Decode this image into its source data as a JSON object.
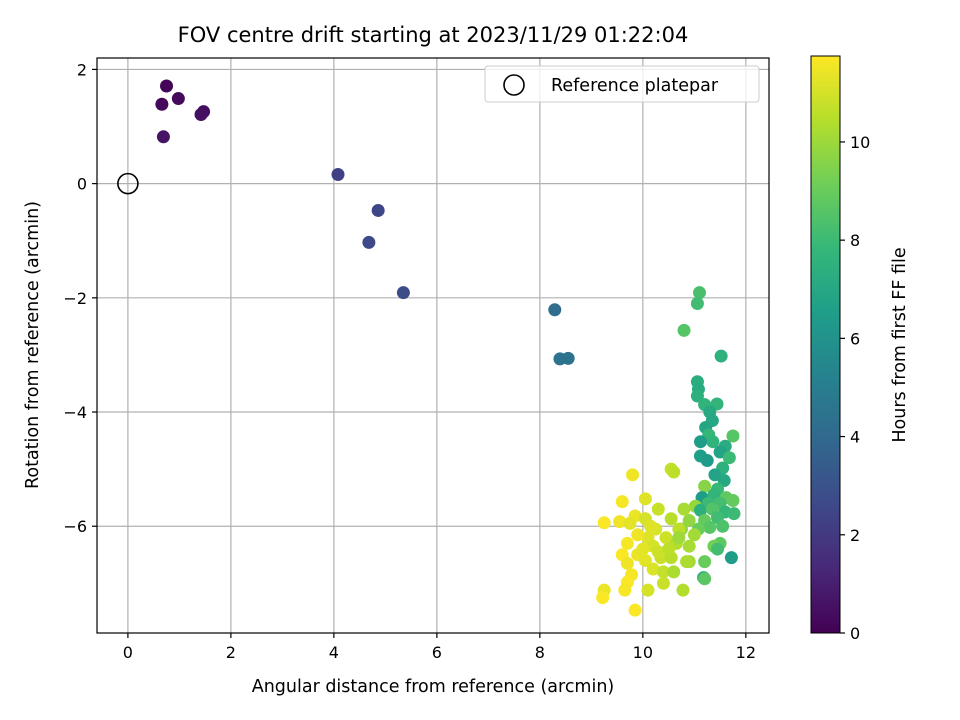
{
  "chart_data": {
    "type": "scatter",
    "title": "FOV centre drift starting at 2023/11/29 01:22:04",
    "xlabel": "Angular distance from reference (arcmin)",
    "ylabel": "Rotation from reference (arcmin)",
    "xlim": [
      -0.6,
      12.45
    ],
    "ylim": [
      -7.87,
      2.2
    ],
    "xticks": [
      0,
      2,
      4,
      6,
      8,
      10,
      12
    ],
    "yticks": [
      -6,
      -4,
      -2,
      0,
      2
    ],
    "xtick_labels": [
      "0",
      "2",
      "4",
      "6",
      "8",
      "10",
      "12"
    ],
    "ytick_labels": [
      "−6",
      "−4",
      "−2",
      "0",
      "2"
    ],
    "grid": true,
    "legend_position": "top-right",
    "legend": [
      "Reference platepar"
    ],
    "reference_point": {
      "x": 0,
      "y": 0
    },
    "colormap": "viridis",
    "colorbar": {
      "label": "Hours from first FF file",
      "range": [
        0,
        11.75
      ],
      "ticks": [
        0,
        2,
        4,
        6,
        8,
        10
      ],
      "tick_labels": [
        "0",
        "2",
        "4",
        "6",
        "8",
        "10"
      ],
      "colors": [
        "#440154",
        "#482878",
        "#3e4989",
        "#31688e",
        "#26828e",
        "#1f9e89",
        "#35b779",
        "#6ece58",
        "#b5de2b",
        "#fde725"
      ]
    },
    "points": [
      {
        "x": 0.75,
        "y": 1.71,
        "h": 0.1
      },
      {
        "x": 0.66,
        "y": 1.39,
        "h": 0.2
      },
      {
        "x": 0.98,
        "y": 1.49,
        "h": 0.3
      },
      {
        "x": 1.47,
        "y": 1.26,
        "h": 0.4
      },
      {
        "x": 1.42,
        "y": 1.21,
        "h": 0.5
      },
      {
        "x": 0.69,
        "y": 0.82,
        "h": 0.6
      },
      {
        "x": 4.08,
        "y": 0.16,
        "h": 2.3
      },
      {
        "x": 4.86,
        "y": -0.47,
        "h": 2.5
      },
      {
        "x": 4.68,
        "y": -1.03,
        "h": 2.6
      },
      {
        "x": 5.35,
        "y": -1.91,
        "h": 2.7
      },
      {
        "x": 8.29,
        "y": -2.21,
        "h": 4.2
      },
      {
        "x": 8.39,
        "y": -3.07,
        "h": 4.4
      },
      {
        "x": 8.55,
        "y": -3.06,
        "h": 4.5
      },
      {
        "x": 11.1,
        "y": -1.91,
        "h": 8.3
      },
      {
        "x": 11.06,
        "y": -2.1,
        "h": 8.1
      },
      {
        "x": 10.8,
        "y": -2.57,
        "h": 8.6
      },
      {
        "x": 11.52,
        "y": -3.02,
        "h": 7.5
      },
      {
        "x": 11.06,
        "y": -3.47,
        "h": 7.3
      },
      {
        "x": 11.08,
        "y": -3.6,
        "h": 7.2
      },
      {
        "x": 11.06,
        "y": -3.72,
        "h": 7.4
      },
      {
        "x": 11.2,
        "y": -3.87,
        "h": 7.6
      },
      {
        "x": 11.44,
        "y": -3.86,
        "h": 7.7
      },
      {
        "x": 11.3,
        "y": -4.0,
        "h": 7.1
      },
      {
        "x": 11.35,
        "y": -4.15,
        "h": 7.0
      },
      {
        "x": 11.22,
        "y": -4.27,
        "h": 6.9
      },
      {
        "x": 11.28,
        "y": -4.4,
        "h": 7.8
      },
      {
        "x": 11.36,
        "y": -4.52,
        "h": 7.6
      },
      {
        "x": 11.12,
        "y": -4.52,
        "h": 6.5
      },
      {
        "x": 11.75,
        "y": -4.42,
        "h": 8.6
      },
      {
        "x": 11.6,
        "y": -4.6,
        "h": 7.2
      },
      {
        "x": 11.5,
        "y": -4.7,
        "h": 6.8
      },
      {
        "x": 11.12,
        "y": -4.77,
        "h": 6.6
      },
      {
        "x": 11.25,
        "y": -4.85,
        "h": 6.4
      },
      {
        "x": 11.68,
        "y": -4.8,
        "h": 8.0
      },
      {
        "x": 11.55,
        "y": -4.98,
        "h": 7.5
      },
      {
        "x": 11.4,
        "y": -5.1,
        "h": 6.8
      },
      {
        "x": 11.58,
        "y": -5.2,
        "h": 7.0
      },
      {
        "x": 11.2,
        "y": -5.3,
        "h": 9.6
      },
      {
        "x": 11.45,
        "y": -5.35,
        "h": 7.9
      },
      {
        "x": 11.15,
        "y": -5.5,
        "h": 6.5
      },
      {
        "x": 11.38,
        "y": -5.45,
        "h": 7.7
      },
      {
        "x": 11.62,
        "y": -5.5,
        "h": 8.8
      },
      {
        "x": 11.75,
        "y": -5.55,
        "h": 8.9
      },
      {
        "x": 11.5,
        "y": -5.6,
        "h": 8.2
      },
      {
        "x": 11.27,
        "y": -5.6,
        "h": 8.0
      },
      {
        "x": 11.02,
        "y": -5.65,
        "h": 9.9
      },
      {
        "x": 11.12,
        "y": -5.72,
        "h": 7.4
      },
      {
        "x": 11.35,
        "y": -5.7,
        "h": 8.5
      },
      {
        "x": 11.6,
        "y": -5.75,
        "h": 7.8
      },
      {
        "x": 11.77,
        "y": -5.78,
        "h": 8.0
      },
      {
        "x": 11.45,
        "y": -5.85,
        "h": 8.1
      },
      {
        "x": 11.2,
        "y": -5.9,
        "h": 8.9
      },
      {
        "x": 10.9,
        "y": -5.9,
        "h": 9.8
      },
      {
        "x": 11.55,
        "y": -6.0,
        "h": 8.4
      },
      {
        "x": 11.3,
        "y": -6.02,
        "h": 8.6
      },
      {
        "x": 11.08,
        "y": -6.05,
        "h": 9.0
      },
      {
        "x": 10.75,
        "y": -6.05,
        "h": 9.7
      },
      {
        "x": 11.5,
        "y": -6.3,
        "h": 8.8
      },
      {
        "x": 11.38,
        "y": -6.35,
        "h": 9.2
      },
      {
        "x": 11.45,
        "y": -6.4,
        "h": 8.2
      },
      {
        "x": 11.72,
        "y": -6.55,
        "h": 6.5
      },
      {
        "x": 11.2,
        "y": -6.62,
        "h": 9.0
      },
      {
        "x": 10.9,
        "y": -6.62,
        "h": 10.0
      },
      {
        "x": 11.18,
        "y": -6.9,
        "h": 7.0
      },
      {
        "x": 11.2,
        "y": -6.92,
        "h": 8.7
      },
      {
        "x": 10.78,
        "y": -7.12,
        "h": 10.4
      },
      {
        "x": 10.55,
        "y": -5.0,
        "h": 10.7
      },
      {
        "x": 10.6,
        "y": -5.05,
        "h": 10.6
      },
      {
        "x": 9.8,
        "y": -5.1,
        "h": 11.5
      },
      {
        "x": 10.05,
        "y": -5.52,
        "h": 11.2
      },
      {
        "x": 9.6,
        "y": -5.57,
        "h": 11.6
      },
      {
        "x": 10.3,
        "y": -5.7,
        "h": 10.8
      },
      {
        "x": 10.8,
        "y": -5.7,
        "h": 10.2
      },
      {
        "x": 10.55,
        "y": -5.87,
        "h": 10.5
      },
      {
        "x": 9.85,
        "y": -5.82,
        "h": 11.4
      },
      {
        "x": 10.05,
        "y": -5.87,
        "h": 11.0
      },
      {
        "x": 9.25,
        "y": -5.94,
        "h": 11.7
      },
      {
        "x": 9.55,
        "y": -5.92,
        "h": 11.5
      },
      {
        "x": 9.75,
        "y": -5.95,
        "h": 11.3
      },
      {
        "x": 10.25,
        "y": -6.05,
        "h": 11.1
      },
      {
        "x": 10.7,
        "y": -6.05,
        "h": 10.6
      },
      {
        "x": 11.0,
        "y": -6.15,
        "h": 10.1
      },
      {
        "x": 10.45,
        "y": -6.2,
        "h": 10.9
      },
      {
        "x": 10.1,
        "y": -6.2,
        "h": 11.2
      },
      {
        "x": 9.7,
        "y": -6.3,
        "h": 11.6
      },
      {
        "x": 10.2,
        "y": -6.35,
        "h": 11.0
      },
      {
        "x": 10.65,
        "y": -6.3,
        "h": 10.4
      },
      {
        "x": 10.9,
        "y": -6.35,
        "h": 10.2
      },
      {
        "x": 9.6,
        "y": -6.5,
        "h": 11.7
      },
      {
        "x": 9.9,
        "y": -6.5,
        "h": 11.4
      },
      {
        "x": 10.05,
        "y": -6.6,
        "h": 11.3
      },
      {
        "x": 10.35,
        "y": -6.55,
        "h": 10.8
      },
      {
        "x": 10.55,
        "y": -6.55,
        "h": 10.5
      },
      {
        "x": 10.85,
        "y": -6.62,
        "h": 10.3
      },
      {
        "x": 9.7,
        "y": -6.65,
        "h": 11.5
      },
      {
        "x": 10.2,
        "y": -6.75,
        "h": 11.1
      },
      {
        "x": 10.4,
        "y": -6.8,
        "h": 10.7
      },
      {
        "x": 10.6,
        "y": -6.8,
        "h": 10.3
      },
      {
        "x": 9.78,
        "y": -6.85,
        "h": 11.6
      },
      {
        "x": 9.7,
        "y": -6.98,
        "h": 11.7
      },
      {
        "x": 10.4,
        "y": -7.0,
        "h": 10.8
      },
      {
        "x": 9.65,
        "y": -7.12,
        "h": 11.6
      },
      {
        "x": 9.25,
        "y": -7.12,
        "h": 11.4
      },
      {
        "x": 10.1,
        "y": -7.12,
        "h": 11.0
      },
      {
        "x": 9.22,
        "y": -7.25,
        "h": 11.7
      },
      {
        "x": 9.85,
        "y": -7.47,
        "h": 11.7
      },
      {
        "x": 10.0,
        "y": -6.4,
        "h": 11.3
      },
      {
        "x": 10.3,
        "y": -6.45,
        "h": 10.9
      },
      {
        "x": 10.7,
        "y": -6.2,
        "h": 10.0
      },
      {
        "x": 9.9,
        "y": -6.15,
        "h": 11.5
      },
      {
        "x": 10.15,
        "y": -6.0,
        "h": 11.2
      },
      {
        "x": 10.5,
        "y": -6.4,
        "h": 10.6
      }
    ]
  }
}
